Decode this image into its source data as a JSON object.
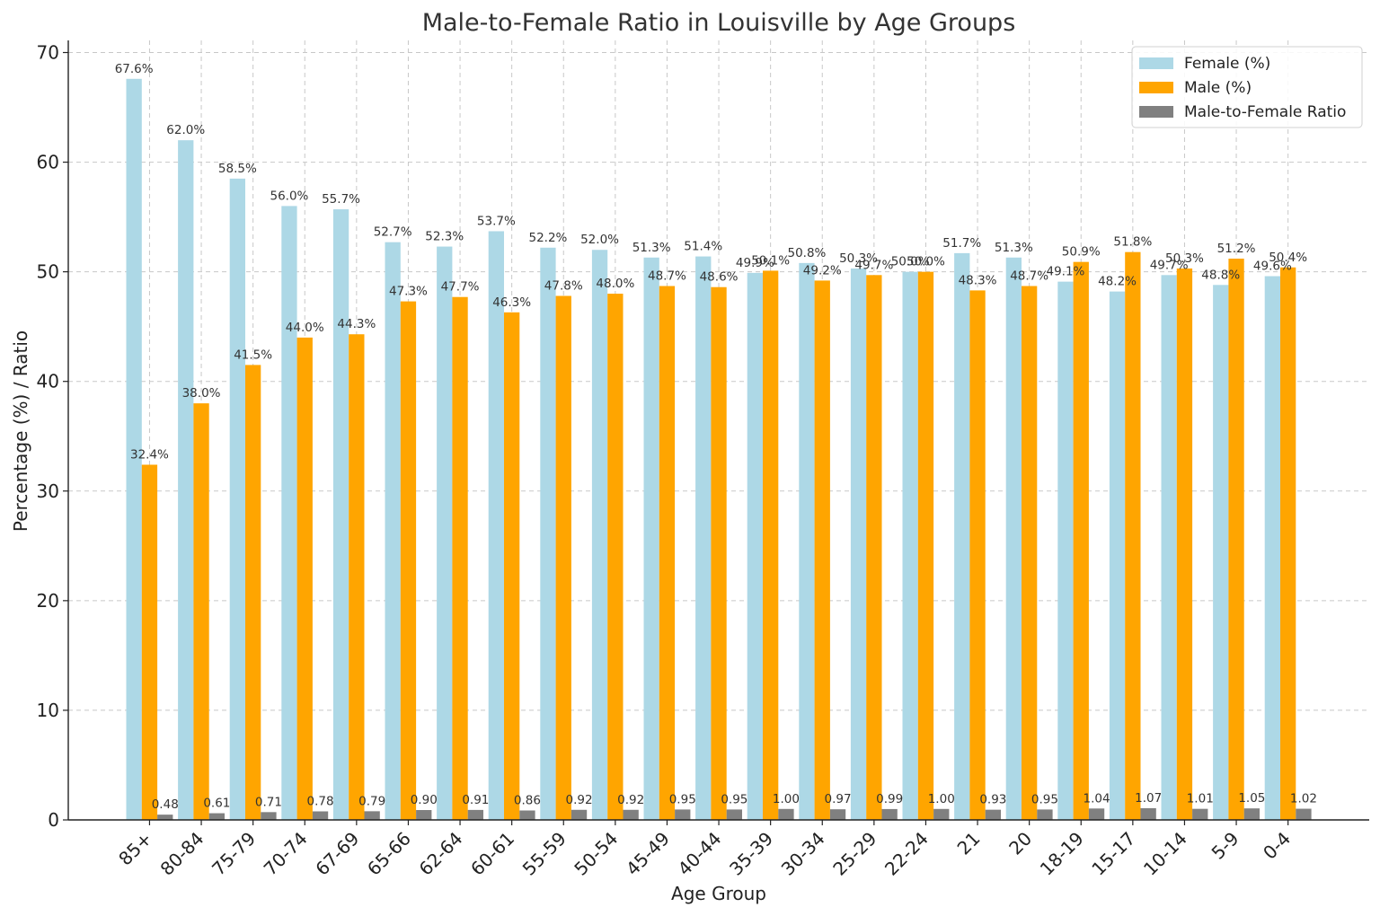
{
  "chart_data": {
    "type": "bar",
    "title": "Male-to-Female Ratio in Louisville by Age Groups",
    "xlabel": "Age Group",
    "ylabel": "Percentage (%) / Ratio",
    "ylim": [
      0,
      70
    ],
    "yticks": [
      0,
      10,
      20,
      30,
      40,
      50,
      60,
      70
    ],
    "grid": true,
    "legend_position": "top-right",
    "categories": [
      "85+",
      "80-84",
      "75-79",
      "70-74",
      "67-69",
      "65-66",
      "62-64",
      "60-61",
      "55-59",
      "50-54",
      "45-49",
      "40-44",
      "35-39",
      "30-34",
      "25-29",
      "22-24",
      "21",
      "20",
      "18-19",
      "15-17",
      "10-14",
      "5-9",
      "0-4"
    ],
    "series": [
      {
        "name": "Female (%)",
        "color": "#add8e6",
        "values": [
          67.6,
          62.0,
          58.5,
          56.0,
          55.7,
          52.7,
          52.3,
          53.7,
          52.2,
          52.0,
          51.3,
          51.4,
          49.9,
          50.8,
          50.3,
          50.0,
          51.7,
          51.3,
          49.1,
          48.2,
          49.7,
          48.8,
          49.6
        ],
        "labels": [
          "67.6%",
          "62.0%",
          "58.5%",
          "56.0%",
          "55.7%",
          "52.7%",
          "52.3%",
          "53.7%",
          "52.2%",
          "52.0%",
          "51.3%",
          "51.4%",
          "49.9%",
          "50.8%",
          "50.3%",
          "50.0%",
          "51.7%",
          "51.3%",
          "49.1%",
          "48.2%",
          "49.7%",
          "48.8%",
          "49.6%"
        ]
      },
      {
        "name": "Male (%)",
        "color": "#ffa500",
        "values": [
          32.4,
          38.0,
          41.5,
          44.0,
          44.3,
          47.3,
          47.7,
          46.3,
          47.8,
          48.0,
          48.7,
          48.6,
          50.1,
          49.2,
          49.7,
          50.0,
          48.3,
          48.7,
          50.9,
          51.8,
          50.3,
          51.2,
          50.4
        ],
        "labels": [
          "32.4%",
          "38.0%",
          "41.5%",
          "44.0%",
          "44.3%",
          "47.3%",
          "47.7%",
          "46.3%",
          "47.8%",
          "48.0%",
          "48.7%",
          "48.6%",
          "50.1%",
          "49.2%",
          "49.7%",
          "50.0%",
          "48.3%",
          "48.7%",
          "50.9%",
          "51.8%",
          "50.3%",
          "51.2%",
          "50.4%"
        ]
      },
      {
        "name": "Male-to-Female Ratio",
        "color": "#808080",
        "values": [
          0.48,
          0.61,
          0.71,
          0.78,
          0.79,
          0.9,
          0.91,
          0.86,
          0.92,
          0.92,
          0.95,
          0.95,
          1.0,
          0.97,
          0.99,
          1.0,
          0.93,
          0.95,
          1.04,
          1.07,
          1.01,
          1.05,
          1.02
        ],
        "labels": [
          "0.48",
          "0.61",
          "0.71",
          "0.78",
          "0.79",
          "0.90",
          "0.91",
          "0.86",
          "0.92",
          "0.92",
          "0.95",
          "0.95",
          "1.00",
          "0.97",
          "0.99",
          "1.00",
          "0.93",
          "0.95",
          "1.04",
          "1.07",
          "1.01",
          "1.05",
          "1.02"
        ]
      }
    ]
  }
}
